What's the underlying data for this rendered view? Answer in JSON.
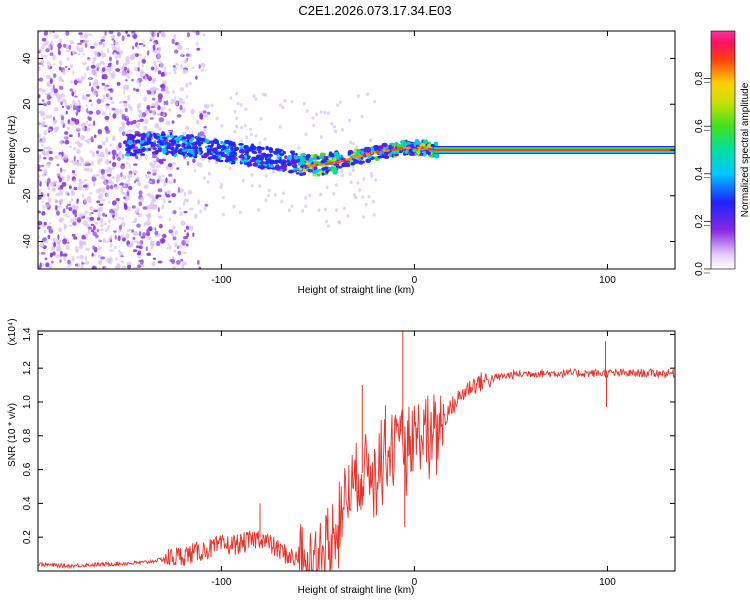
{
  "title": "C2E1.2026.073.17.34.E03",
  "chart_data": [
    {
      "type": "heatmap",
      "xlabel": "Height of straight line (km)",
      "ylabel": "Frequency (Hz)",
      "xlim": [
        -195,
        135
      ],
      "ylim": [
        -52,
        52
      ],
      "xticks": [
        -100,
        0,
        100
      ],
      "yticks": [
        -40,
        -20,
        0,
        20,
        40
      ],
      "colorbar": {
        "label": "Normalized spectral amplitude",
        "range": [
          0,
          1
        ],
        "ticks": [
          "0.0",
          "0.2",
          "0.4",
          "0.6",
          "0.8"
        ]
      },
      "ridge_frequency": {
        "x": [
          -150,
          -130,
          -110,
          -95,
          -80,
          -65,
          -55,
          -45,
          -38,
          -30,
          -20,
          -12,
          -5,
          0,
          5,
          10,
          20,
          60,
          100,
          135
        ],
        "y": [
          2,
          3,
          1,
          -1,
          -3,
          -5,
          -7,
          -6,
          -5,
          -3,
          -1,
          0,
          1,
          1,
          1,
          0,
          0,
          0,
          0,
          0
        ]
      },
      "constant_line_start_x": 10,
      "constant_line_frequency": 0
    },
    {
      "type": "line",
      "xlabel": "Height of straight line (km)",
      "ylabel": "SNR (10 * v/v)",
      "y_scale_label": "(x10⁴)",
      "xlim": [
        -195,
        135
      ],
      "ylim": [
        0,
        1.42
      ],
      "xticks": [
        -100,
        0,
        100
      ],
      "yticks": [
        0.2,
        0.4,
        0.6,
        0.8,
        1.0,
        1.2,
        1.4
      ],
      "ytick_labels": [
        "0.2",
        "0.4",
        "0.6",
        "0.8",
        "1.0",
        "1.2",
        "1.4"
      ],
      "series": [
        {
          "name": "SNR",
          "color": "#e8332b",
          "x": [
            -195,
            -180,
            -160,
            -140,
            -130,
            -120,
            -110,
            -100,
            -90,
            -80,
            -70,
            -60,
            -55,
            -50,
            -45,
            -40,
            -35,
            -30,
            -25,
            -20,
            -15,
            -10,
            -5,
            0,
            5,
            10,
            15,
            20,
            25,
            30,
            40,
            50,
            60,
            80,
            100,
            120,
            135
          ],
          "y": [
            0.04,
            0.03,
            0.04,
            0.05,
            0.07,
            0.09,
            0.12,
            0.15,
            0.16,
            0.2,
            0.12,
            0.06,
            0.05,
            0.08,
            0.15,
            0.3,
            0.45,
            0.55,
            0.6,
            0.65,
            0.7,
            0.72,
            0.75,
            0.8,
            0.82,
            0.85,
            0.9,
            0.98,
            1.05,
            1.1,
            1.14,
            1.16,
            1.17,
            1.17,
            1.17,
            1.17,
            1.17
          ]
        }
      ],
      "spikes": [
        {
          "x": -80,
          "y": 0.4
        },
        {
          "x": -27,
          "y": 1.1
        },
        {
          "x": -15,
          "y": 0.98
        },
        {
          "x": -6,
          "y": 1.42
        },
        {
          "x": -5,
          "y": 0.26
        },
        {
          "x": 99,
          "y": 1.36
        },
        {
          "x": 99.5,
          "y": 0.97
        }
      ]
    }
  ]
}
